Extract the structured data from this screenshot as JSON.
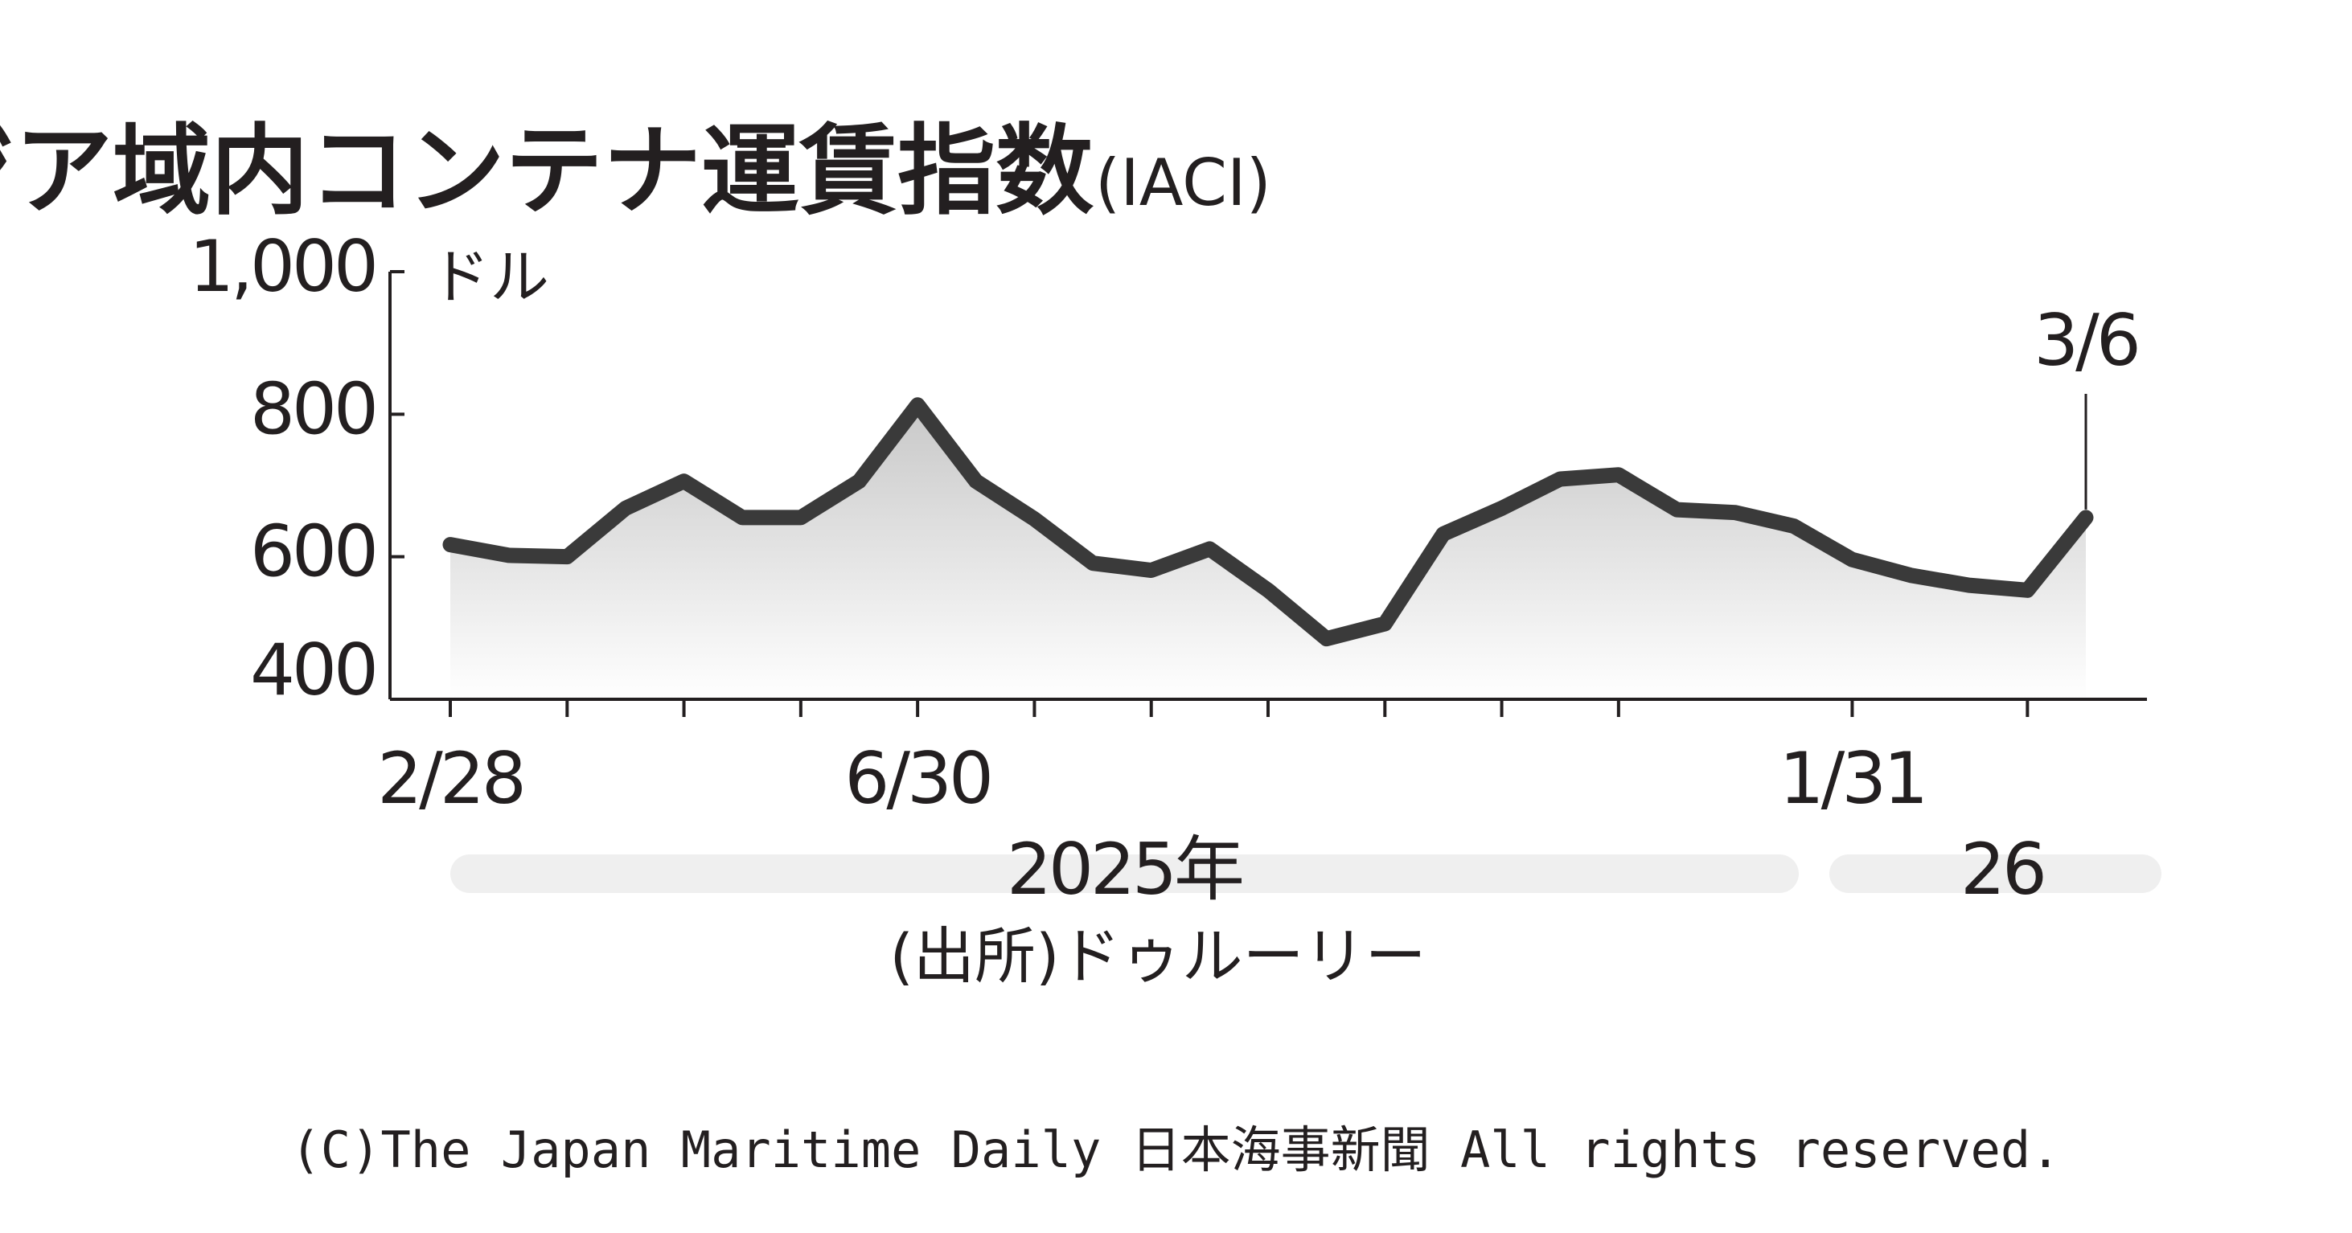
{
  "chart_data": {
    "type": "line",
    "title": "アジア域内コンテナ運賃指数",
    "title_suffix": "(IACI)",
    "y_unit": "ドル",
    "categories": [
      "2/28",
      null,
      null,
      null,
      null,
      null,
      null,
      null,
      "6/30",
      null,
      null,
      null,
      null,
      null,
      null,
      null,
      null,
      null,
      null,
      null,
      null,
      null,
      null,
      null,
      "1/31",
      null,
      null,
      null,
      null
    ],
    "values": [
      617,
      602,
      600,
      668,
      706,
      655,
      655,
      706,
      813,
      706,
      653,
      591,
      581,
      611,
      553,
      485,
      506,
      632,
      668,
      709,
      715,
      666,
      662,
      643,
      596,
      574,
      560,
      553,
      655
    ],
    "color": "#3a3a3a",
    "ylim": [
      400,
      1000
    ],
    "yticks": [
      400,
      600,
      800,
      {
        "value": 1000,
        "label": "1,000"
      }
    ],
    "annotation": "3/6",
    "years": [
      "2025年",
      "26"
    ],
    "source": "(出所)ドゥルーリー"
  },
  "footer": "(C)The Japan Maritime Daily 日本海事新聞 All rights reserved."
}
